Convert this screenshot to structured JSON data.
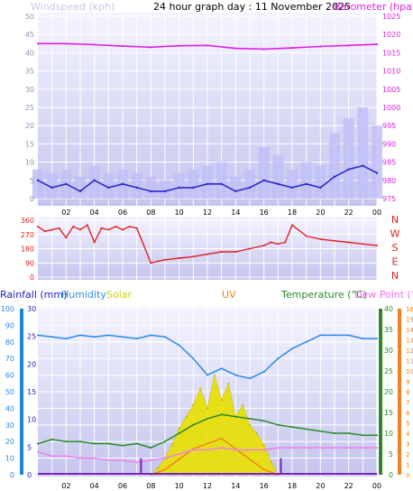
{
  "title": "24 hour graph day : 11 November 2025",
  "colors": {
    "panel_bg_top": "#f2f2ff",
    "panel_bg_bottom": "#c8c8f0",
    "grid": "#ffffff",
    "wind_avg": "#2a2ac8",
    "wind_gust": "#c0c0f8",
    "barometer": "#e020e0",
    "direction": "#e02020",
    "humidity": "#2a8ae8",
    "temperature": "#2a8a2a",
    "dew_point": "#f080f0",
    "solar": "#e8e000",
    "uv": "#f08020",
    "rain": "#8020c0",
    "rain_axis": "#1a88d8",
    "uv_axis": "#f08020",
    "temp_axis": "#2a8a2a"
  },
  "wind_panel": {
    "left_label": "Windspeed (kph)",
    "right_label": "Barometer (hpa)",
    "y_ticks": [
      "0",
      "5",
      "10",
      "15",
      "20",
      "25",
      "30",
      "35",
      "40",
      "45",
      "50"
    ],
    "baro_ticks": [
      "975",
      "980",
      "985",
      "990",
      "995",
      "1000",
      "1005",
      "1010",
      "1015",
      "1020",
      "1025"
    ]
  },
  "direction_panel": {
    "y_ticks": [
      "0",
      "90",
      "180",
      "270",
      "360"
    ],
    "compass": [
      "N",
      "W",
      "S",
      "E",
      "N"
    ]
  },
  "bottom_panel": {
    "rainfall_label": "Rainfall (mm)",
    "humidity_label": "Humidity",
    "solar_label": "Solar",
    "uv_label": "UV",
    "temperature_label": "Temperature (°C)",
    "dewpoint_label": "Dew Point (°C)",
    "humidity_ticks": [
      "0",
      "10",
      "20",
      "30",
      "40",
      "50",
      "60",
      "70",
      "80",
      "90",
      "100"
    ],
    "rain_ticks": [
      "0",
      "5",
      "10",
      "15",
      "20",
      "25",
      "30"
    ],
    "temp_ticks": [
      "0",
      "5",
      "10",
      "15",
      "20",
      "25",
      "30",
      "35",
      "40"
    ],
    "uv_ticks": [
      "0",
      "1",
      "2",
      "3",
      "4",
      "5",
      "6",
      "7",
      "8",
      "9",
      "10",
      "11",
      "12",
      "13",
      "14",
      "15",
      "16"
    ]
  },
  "x_ticks": [
    "02",
    "04",
    "06",
    "08",
    "10",
    "12",
    "14",
    "16",
    "18",
    "20",
    "22",
    "00"
  ],
  "chart_data": {
    "type": "line",
    "x_unit": "hour",
    "wind_speed": {
      "name": "Windspeed (kph)",
      "x": [
        0,
        1,
        2,
        3,
        4,
        5,
        6,
        7,
        8,
        9,
        10,
        11,
        12,
        13,
        14,
        15,
        16,
        17,
        18,
        19,
        20,
        21,
        22,
        23,
        24
      ],
      "avg": [
        5,
        3,
        4,
        2,
        5,
        3,
        4,
        3,
        2,
        2,
        3,
        3,
        4,
        4,
        2,
        3,
        5,
        4,
        3,
        4,
        3,
        6,
        8,
        9,
        7
      ],
      "gust": [
        8,
        7,
        8,
        6,
        9,
        7,
        8,
        7,
        6,
        5,
        7,
        8,
        9,
        10,
        6,
        8,
        14,
        12,
        8,
        10,
        9,
        18,
        22,
        25,
        20
      ]
    },
    "barometer": {
      "name": "Barometer (hpa)",
      "x": [
        0,
        2,
        4,
        6,
        8,
        10,
        12,
        14,
        16,
        18,
        20,
        22,
        24
      ],
      "values": [
        1017.5,
        1017.5,
        1017.2,
        1016.8,
        1016.5,
        1016.9,
        1017.0,
        1016.2,
        1016.0,
        1016.3,
        1016.7,
        1017.0,
        1017.3
      ]
    },
    "wind_direction": {
      "name": "Wind direction",
      "x": [
        0,
        0.5,
        1.0,
        1.5,
        2.0,
        2.5,
        3.0,
        3.5,
        4.0,
        4.5,
        5.0,
        5.5,
        6.0,
        6.5,
        7.0,
        7.5,
        8.0,
        8.5,
        9.0,
        10.0,
        11.0,
        12.0,
        13.0,
        14.0,
        15.0,
        16.0,
        16.5,
        17.0,
        17.5,
        18.0,
        19.0,
        20.0,
        21.0,
        22.0,
        23.0,
        24.0
      ],
      "values": [
        320,
        290,
        300,
        310,
        250,
        320,
        300,
        330,
        220,
        310,
        300,
        320,
        300,
        320,
        310,
        200,
        90,
        100,
        110,
        120,
        130,
        145,
        160,
        160,
        180,
        200,
        220,
        210,
        220,
        330,
        260,
        240,
        230,
        220,
        210,
        200
      ]
    },
    "humidity": {
      "name": "Humidity",
      "x": [
        0,
        1,
        2,
        3,
        4,
        5,
        6,
        7,
        8,
        9,
        10,
        11,
        12,
        13,
        14,
        15,
        16,
        17,
        18,
        19,
        20,
        21,
        22,
        23,
        24
      ],
      "values": [
        84,
        83,
        82,
        84,
        83,
        84,
        83,
        82,
        84,
        83,
        78,
        70,
        60,
        64,
        60,
        58,
        62,
        70,
        76,
        80,
        84,
        84,
        84,
        82,
        82
      ]
    },
    "temperature": {
      "name": "Temperature (°C)",
      "x": [
        0,
        1,
        2,
        3,
        4,
        5,
        6,
        7,
        8,
        9,
        10,
        11,
        12,
        13,
        14,
        15,
        16,
        17,
        18,
        19,
        20,
        21,
        22,
        23,
        24
      ],
      "values": [
        7.5,
        8.5,
        8.0,
        8.0,
        7.5,
        7.5,
        7.0,
        7.5,
        6.5,
        8.0,
        10.0,
        12.0,
        13.5,
        14.5,
        14.0,
        13.5,
        13.0,
        12.0,
        11.5,
        11.0,
        10.5,
        10.0,
        10.0,
        9.5,
        9.5
      ]
    },
    "dew_point": {
      "name": "Dew Point (°C)",
      "x": [
        0,
        1,
        2,
        3,
        4,
        5,
        6,
        7,
        8,
        9,
        10,
        11,
        12,
        13,
        14,
        15,
        16,
        17,
        18,
        19,
        20,
        21,
        22,
        23,
        24
      ],
      "values": [
        5.5,
        4.5,
        4.5,
        4.0,
        4.0,
        3.5,
        3.5,
        3.0,
        3.5,
        4.0,
        5.0,
        6.0,
        6.0,
        6.5,
        6.0,
        6.0,
        6.0,
        6.5,
        6.5,
        6.5,
        6.5,
        6.5,
        6.5,
        6.5,
        6.5
      ]
    },
    "solar": {
      "name": "Solar",
      "x": [
        8.0,
        8.5,
        9.0,
        9.5,
        10.0,
        10.5,
        11.0,
        11.5,
        12.0,
        12.5,
        13.0,
        13.5,
        14.0,
        14.5,
        15.0,
        15.5,
        16.0,
        16.5,
        17.0
      ],
      "values_pct": [
        0,
        4,
        10,
        18,
        28,
        35,
        42,
        52,
        40,
        60,
        45,
        55,
        35,
        42,
        30,
        25,
        18,
        8,
        0
      ]
    },
    "uv": {
      "name": "UV",
      "x": [
        8.0,
        9.0,
        10.0,
        11.0,
        12.0,
        13.0,
        14.0,
        15.0,
        16.0,
        17.0
      ],
      "values": [
        0,
        0.5,
        1.5,
        2.5,
        3.0,
        3.5,
        2.5,
        1.5,
        0.5,
        0
      ]
    },
    "rainfall": {
      "name": "Rainfall (mm)",
      "x": [
        7.3,
        17.2
      ],
      "values": [
        3,
        3
      ]
    }
  }
}
